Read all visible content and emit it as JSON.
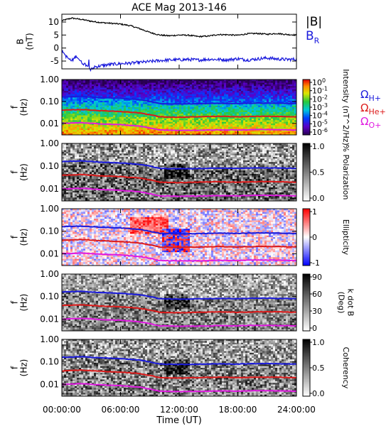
{
  "chart_data": {
    "type": "line",
    "title": "ACE Mag 2013-146",
    "xlabel": "Time (UT)",
    "x_ticks": [
      "00:00:00",
      "06:00:00",
      "12:00:00",
      "18:00:00",
      "24:00:00"
    ],
    "x_range_hours": [
      0,
      24
    ],
    "panels": [
      {
        "id": "b-field",
        "kind": "line",
        "ylabel": [
          "B",
          "(nT)"
        ],
        "ylim": [
          -8,
          13
        ],
        "yticks": [
          10,
          5,
          0,
          -5
        ],
        "legend": [
          {
            "label": "|B|",
            "color": "#000000"
          },
          {
            "label": "B",
            "sub": "R",
            "color": "#1a1adc"
          }
        ],
        "series": [
          {
            "name": "|B|",
            "color": "#000000",
            "x": [
              0,
              1,
              2,
              3,
              4,
              5,
              6,
              7,
              8,
              9,
              10,
              11,
              12,
              13,
              14,
              15,
              16,
              17,
              18,
              19,
              20,
              21,
              22,
              23,
              24
            ],
            "y": [
              10.5,
              11.5,
              11,
              10.3,
              9.8,
              9.5,
              9.2,
              8.6,
              7.4,
              6,
              5,
              4.7,
              5,
              4.9,
              4.4,
              4.6,
              5.2,
              5.1,
              4.9,
              5.5,
              5.6,
              5.3,
              5.6,
              5.2,
              5
            ]
          },
          {
            "name": "B_R",
            "color": "#1a1adc",
            "x": [
              0,
              0.5,
              1,
              1.5,
              2,
              2.5,
              3,
              3.5,
              4,
              5,
              6,
              7,
              8,
              9,
              10,
              11,
              12,
              13,
              14,
              15,
              16,
              17,
              18,
              19,
              20,
              21,
              22,
              23,
              24
            ],
            "y": [
              -1,
              -3.5,
              -5,
              -3,
              -5.5,
              -6.5,
              -7.8,
              -7.2,
              -6.8,
              -6.3,
              -6,
              -5.8,
              -5.5,
              -5.2,
              -4.8,
              -4.6,
              -4.5,
              -4.4,
              -4.6,
              -4.3,
              -4.4,
              -4.5,
              -4.1,
              -4.6,
              -4.2,
              -3.8,
              -4.2,
              -4.4,
              -4.3
            ]
          }
        ]
      },
      {
        "id": "intensity",
        "kind": "spectrogram",
        "ylabel": [
          "f",
          "(Hz)"
        ],
        "yticks": [
          "1.00",
          "0.10",
          "0.01"
        ],
        "ylim": [
          0.003,
          1.0
        ],
        "yscale": "log",
        "colorbar": {
          "ticks": [
            "10^0",
            "10^-1",
            "10^-2",
            "10^-3",
            "10^-4",
            "10^-5",
            "10^-6"
          ],
          "label": "Intensity (nT^2/Hz)",
          "scale": "rainbow"
        },
        "gyro_labels": [
          {
            "text": "Ω",
            "sub": "H+",
            "color": "#1a1adc"
          },
          {
            "text": "Ω",
            "sub": "He+",
            "color": "#dc1a1a"
          },
          {
            "text": "Ω",
            "sub": "O+",
            "color": "#e01ae0"
          }
        ]
      },
      {
        "id": "polarization",
        "kind": "spectrogram",
        "ylabel": [
          "f",
          "(Hz)"
        ],
        "yticks": [
          "1.00",
          "0.10",
          "0.01"
        ],
        "colorbar": {
          "ticks": [
            "1.0",
            "0.5",
            "0.0"
          ],
          "label": "% Polarization",
          "scale": "gray"
        }
      },
      {
        "id": "ellipticity",
        "kind": "spectrogram",
        "ylabel": [
          "f",
          "(Hz)"
        ],
        "yticks": [
          "1.00",
          "0.10",
          "0.01"
        ],
        "colorbar": {
          "ticks": [
            "1",
            "0",
            "-1"
          ],
          "label": "Ellipticity",
          "scale": "bwr"
        }
      },
      {
        "id": "kdotb",
        "kind": "spectrogram",
        "ylabel": [
          "f",
          "(Hz)"
        ],
        "yticks": [
          "1.00",
          "0.10",
          "0.01"
        ],
        "colorbar": {
          "ticks": [
            "90",
            "60",
            "30",
            "0"
          ],
          "label": "k dot B (Deg)",
          "label_lines": [
            "k dot B",
            "(Deg)"
          ],
          "scale": "gray"
        }
      },
      {
        "id": "coherency",
        "kind": "spectrogram",
        "ylabel": [
          "f",
          "(Hz)"
        ],
        "yticks": [
          "1.00",
          "0.10",
          "0.01"
        ],
        "colorbar": {
          "ticks": [
            "1.0",
            "0.5",
            "0.0"
          ],
          "label": "Coherency",
          "scale": "gray"
        }
      }
    ],
    "gyrofrequency_lines": [
      {
        "name": "H+",
        "color": "#1a1adc",
        "x": [
          0,
          2,
          4,
          6,
          8,
          10,
          12,
          14,
          16,
          18,
          20,
          22,
          24
        ],
        "y": [
          0.16,
          0.17,
          0.15,
          0.14,
          0.12,
          0.08,
          0.077,
          0.079,
          0.082,
          0.08,
          0.085,
          0.083,
          0.08
        ]
      },
      {
        "name": "He+",
        "color": "#dc1a1a",
        "x": [
          0,
          2,
          4,
          6,
          8,
          10,
          12,
          14,
          16,
          18,
          20,
          22,
          24
        ],
        "y": [
          0.04,
          0.043,
          0.038,
          0.035,
          0.03,
          0.02,
          0.019,
          0.02,
          0.021,
          0.02,
          0.021,
          0.021,
          0.02
        ]
      },
      {
        "name": "O+",
        "color": "#e01ae0",
        "x": [
          0,
          2,
          4,
          6,
          8,
          10,
          12,
          14,
          16,
          18,
          20,
          22,
          24
        ],
        "y": [
          0.01,
          0.0108,
          0.0095,
          0.0088,
          0.0075,
          0.005,
          0.0048,
          0.0049,
          0.0051,
          0.005,
          0.0053,
          0.0052,
          0.005
        ]
      }
    ]
  }
}
